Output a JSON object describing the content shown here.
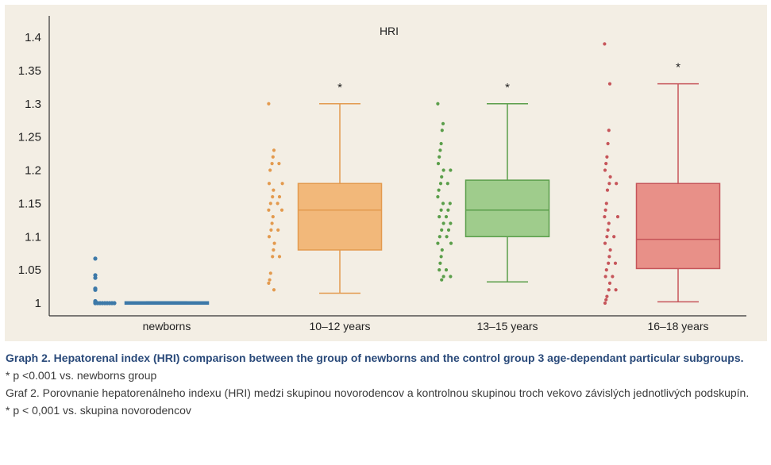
{
  "chart_data": {
    "type": "box",
    "title": "HRI",
    "xlabel": "",
    "ylabel": "",
    "ylim": [
      0.975,
      1.42
    ],
    "yticks": [
      "1",
      "1.05",
      "1.1",
      "1.15",
      "1.2",
      "1.25",
      "1.3",
      "1.35",
      "1.4"
    ],
    "categories": [
      "newborns",
      "10–12 years",
      "13–15 years",
      "16–18 years"
    ],
    "significance_marker": "*",
    "groups": [
      {
        "category": "newborns",
        "color": "#3d79a8",
        "edge": "#3d79a8",
        "min": 1.0,
        "q1": 1.0,
        "median": 1.0,
        "q3": 1.002,
        "max": 1.002,
        "significant": false,
        "points": [
          1.0,
          1.0,
          1.0,
          1.0,
          1.0,
          1.0,
          1.0,
          1.0,
          1.0,
          1.0,
          1.002,
          1.003,
          1.02,
          1.022,
          1.038,
          1.042,
          1.067
        ]
      },
      {
        "category": "10–12 years",
        "color": "#f2b87a",
        "edge": "#e39a4e",
        "min": 1.015,
        "q1": 1.08,
        "median": 1.14,
        "q3": 1.18,
        "max": 1.3,
        "significant": true,
        "points": [
          1.3,
          1.23,
          1.22,
          1.21,
          1.21,
          1.2,
          1.18,
          1.18,
          1.17,
          1.16,
          1.16,
          1.15,
          1.15,
          1.14,
          1.14,
          1.13,
          1.12,
          1.11,
          1.11,
          1.1,
          1.09,
          1.08,
          1.07,
          1.07,
          1.045,
          1.035,
          1.03,
          1.02
        ]
      },
      {
        "category": "13–15 years",
        "color": "#9fcc8c",
        "edge": "#5a9e4a",
        "min": 1.032,
        "q1": 1.1,
        "median": 1.14,
        "q3": 1.185,
        "max": 1.3,
        "significant": true,
        "points": [
          1.3,
          1.27,
          1.26,
          1.24,
          1.23,
          1.22,
          1.21,
          1.2,
          1.2,
          1.19,
          1.18,
          1.18,
          1.17,
          1.16,
          1.15,
          1.15,
          1.14,
          1.14,
          1.13,
          1.13,
          1.12,
          1.12,
          1.11,
          1.11,
          1.1,
          1.1,
          1.09,
          1.09,
          1.08,
          1.07,
          1.06,
          1.05,
          1.05,
          1.04,
          1.04,
          1.035
        ]
      },
      {
        "category": "16–18 years",
        "color": "#e89088",
        "edge": "#c6555a",
        "min": 1.002,
        "q1": 1.052,
        "median": 1.096,
        "q3": 1.18,
        "max": 1.33,
        "significant": true,
        "points": [
          1.39,
          1.33,
          1.26,
          1.24,
          1.22,
          1.21,
          1.2,
          1.19,
          1.18,
          1.18,
          1.17,
          1.15,
          1.14,
          1.13,
          1.13,
          1.12,
          1.11,
          1.1,
          1.1,
          1.09,
          1.08,
          1.07,
          1.06,
          1.06,
          1.05,
          1.04,
          1.04,
          1.03,
          1.02,
          1.02,
          1.01,
          1.005,
          1.0
        ]
      }
    ]
  },
  "caption": {
    "title": "Graph 2. Hepatorenal index (HRI) comparison between the group of newborns and the control group 3 age-dependant particular subgroups.",
    "note_en": "* p <0.001 vs. newborns group",
    "title_sk": "Graf 2. Porovnanie hepatorenálneho indexu (HRI) medzi skupinou novorodencov a kontrolnou skupinou troch vekovo závislých jednotlivých podskupín.",
    "note_sk": "* p < 0,001 vs. skupina novorodencov"
  }
}
